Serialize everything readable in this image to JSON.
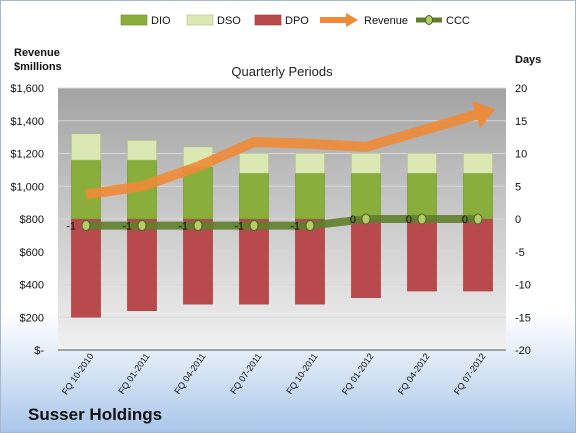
{
  "chart_data": {
    "type": "bar",
    "title": "Quarterly Periods",
    "company": "Susser Holdings",
    "left_axis_title": [
      "Revenue",
      "$millions"
    ],
    "right_axis_title": "Days",
    "categories": [
      "FQ 10-2010",
      "FQ 01-2011",
      "FQ 04-2011",
      "FQ 07-2011",
      "FQ 10-2011",
      "FQ 01-2012",
      "FQ 04-2012",
      "FQ 07-2012"
    ],
    "left_axis": {
      "min": 0,
      "max": 1600,
      "step": 200,
      "tick_labels": [
        "$-",
        "$200",
        "$400",
        "$600",
        "$800",
        "$1,000",
        "$1,200",
        "$1,400",
        "$1,600"
      ]
    },
    "right_axis": {
      "min": -20,
      "max": 20,
      "step": 5,
      "tick_labels": [
        "-20",
        "-15",
        "-10",
        "-5",
        "0",
        "5",
        "10",
        "15",
        "20"
      ]
    },
    "series": [
      {
        "name": "DIO",
        "axis": "right",
        "kind": "stacked-bar",
        "values": [
          9,
          9,
          8,
          7,
          7,
          7,
          7,
          7
        ],
        "color": "#8aae3c"
      },
      {
        "name": "DSO",
        "axis": "right",
        "kind": "stacked-bar",
        "values": [
          4,
          3,
          3,
          3,
          3,
          3,
          3,
          3
        ],
        "color": "#dbe8b4"
      },
      {
        "name": "DPO",
        "axis": "right",
        "kind": "negative-bar",
        "values": [
          -15,
          -14,
          -13,
          -13,
          -13,
          -12,
          -11,
          -11
        ],
        "color": "#b84a4e"
      },
      {
        "name": "Revenue",
        "axis": "left",
        "kind": "arrow-line",
        "values": [
          950,
          1000,
          1120,
          1270,
          1260,
          1240,
          1340,
          1440
        ],
        "color": "#ee8a36"
      },
      {
        "name": "CCC",
        "axis": "right",
        "kind": "line-markers",
        "values": [
          -1,
          -1,
          -1,
          -1,
          -1,
          0,
          0,
          0
        ],
        "color": "#5f7f2e"
      }
    ],
    "ccc_labels": [
      "-1",
      "-1",
      "-1",
      "-1",
      "-1",
      "0",
      "0",
      "0"
    ],
    "grid": true,
    "legend_position": "top"
  }
}
